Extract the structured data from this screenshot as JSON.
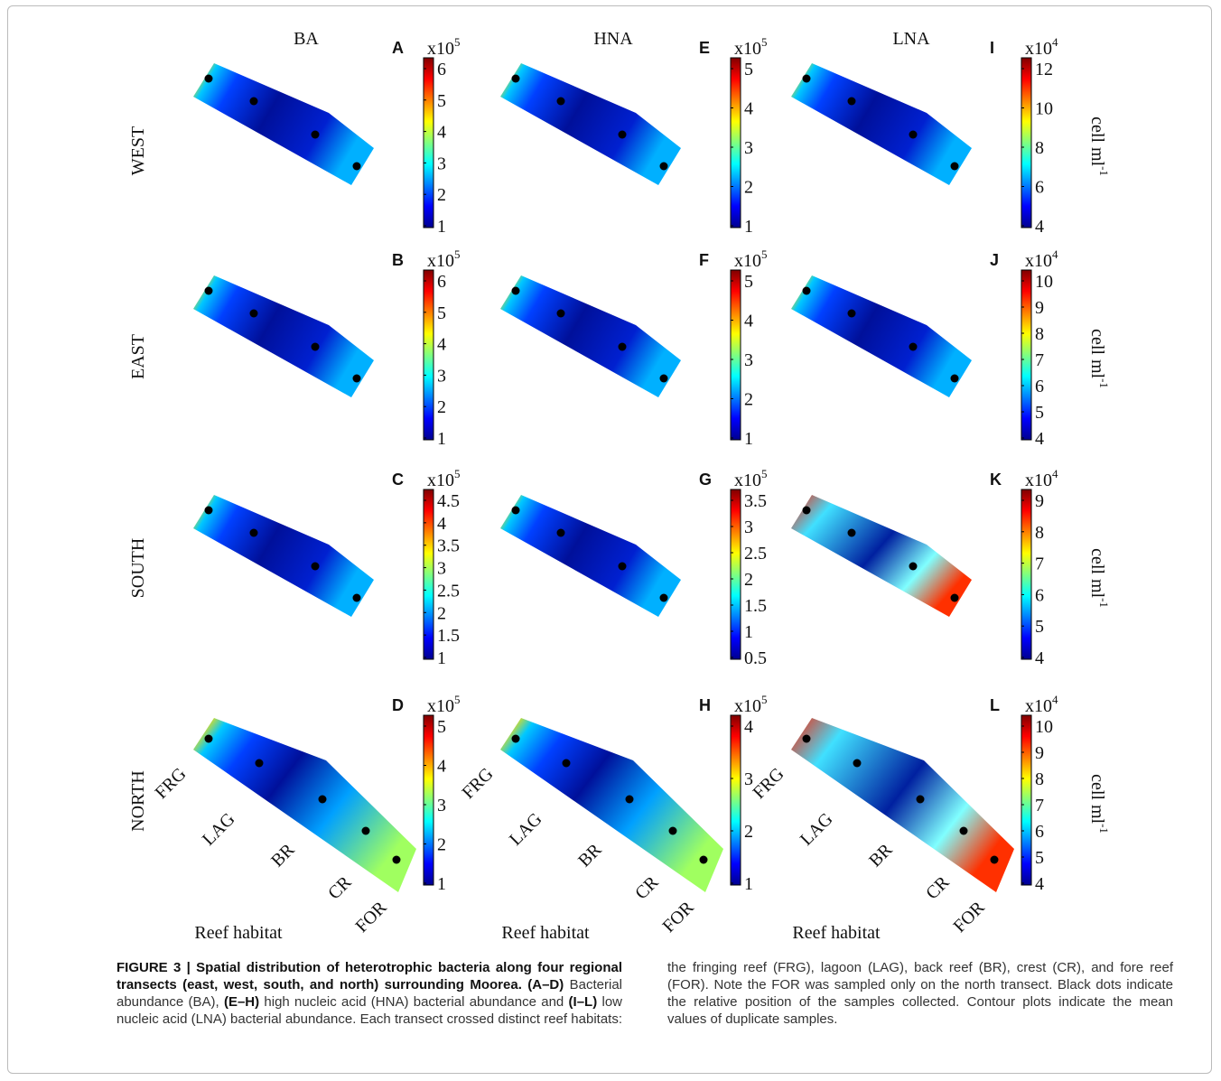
{
  "columns": [
    "BA",
    "HNA",
    "LNA"
  ],
  "rows": [
    "WEST",
    "EAST",
    "SOUTH",
    "NORTH"
  ],
  "panels": [
    [
      {
        "letter": "A",
        "scale": "x10",
        "power": "5",
        "ticks": [
          1,
          2,
          3,
          4,
          5,
          6
        ]
      },
      {
        "letter": "E",
        "scale": "x10",
        "power": "5",
        "ticks": [
          1,
          2,
          3,
          4,
          5
        ]
      },
      {
        "letter": "I",
        "scale": "x10",
        "power": "4",
        "ticks": [
          4,
          6,
          8,
          10,
          12
        ],
        "unit": "cell ml",
        "unit_power": "-1"
      }
    ],
    [
      {
        "letter": "B",
        "scale": "x10",
        "power": "5",
        "ticks": [
          1,
          2,
          3,
          4,
          5,
          6
        ]
      },
      {
        "letter": "F",
        "scale": "x10",
        "power": "5",
        "ticks": [
          1,
          2,
          3,
          4,
          5
        ]
      },
      {
        "letter": "J",
        "scale": "x10",
        "power": "4",
        "ticks": [
          4,
          5,
          6,
          7,
          8,
          9,
          10
        ],
        "unit": "cell ml",
        "unit_power": "-1"
      }
    ],
    [
      {
        "letter": "C",
        "scale": "x10",
        "power": "5",
        "ticks": [
          1,
          1.5,
          2,
          2.5,
          3,
          3.5,
          4,
          4.5
        ]
      },
      {
        "letter": "G",
        "scale": "x10",
        "power": "5",
        "ticks": [
          0.5,
          1,
          1.5,
          2,
          2.5,
          3,
          3.5
        ]
      },
      {
        "letter": "K",
        "scale": "x10",
        "power": "4",
        "ticks": [
          4,
          5,
          6,
          7,
          8,
          9
        ],
        "unit": "cell ml",
        "unit_power": "-1"
      }
    ],
    [
      {
        "letter": "D",
        "scale": "x10",
        "power": "5",
        "ticks": [
          1,
          2,
          3,
          4,
          5
        ]
      },
      {
        "letter": "H",
        "scale": "x10",
        "power": "5",
        "ticks": [
          1,
          2,
          3,
          4
        ]
      },
      {
        "letter": "L",
        "scale": "x10",
        "power": "4",
        "ticks": [
          4,
          5,
          6,
          7,
          8,
          9,
          10
        ],
        "unit": "cell ml",
        "unit_power": "-1"
      }
    ]
  ],
  "habitats": [
    "FRG",
    "LAG",
    "BR",
    "CR",
    "FOR"
  ],
  "xlabel": "Reef habitat",
  "caption": [
    {
      "text": "FIGURE 3 | Spatial distribution of heterotrophic bacteria along four regional transects (east, west, south, and north) surrounding Moorea. ",
      "bold": true
    },
    {
      "text": "(A–D)",
      "bold": true
    },
    {
      "text": " Bacterial abundance (BA), ",
      "bold": false
    },
    {
      "text": "(E–H)",
      "bold": true
    },
    {
      "text": " high nucleic acid (HNA) bacterial abundance and ",
      "bold": false
    },
    {
      "text": "(I–L)",
      "bold": true
    },
    {
      "text": " low nucleic acid (LNA) bacterial abundance. Each transect crossed distinct reef habitats: the fringing reef (FRG), lagoon (LAG), back reef (BR), crest (CR), and fore reef (FOR). Note the FOR was sampled only on the north transect. Black dots indicate the relative position of the samples collected. Contour plots indicate the mean values of duplicate samples.",
      "bold": false
    }
  ]
}
